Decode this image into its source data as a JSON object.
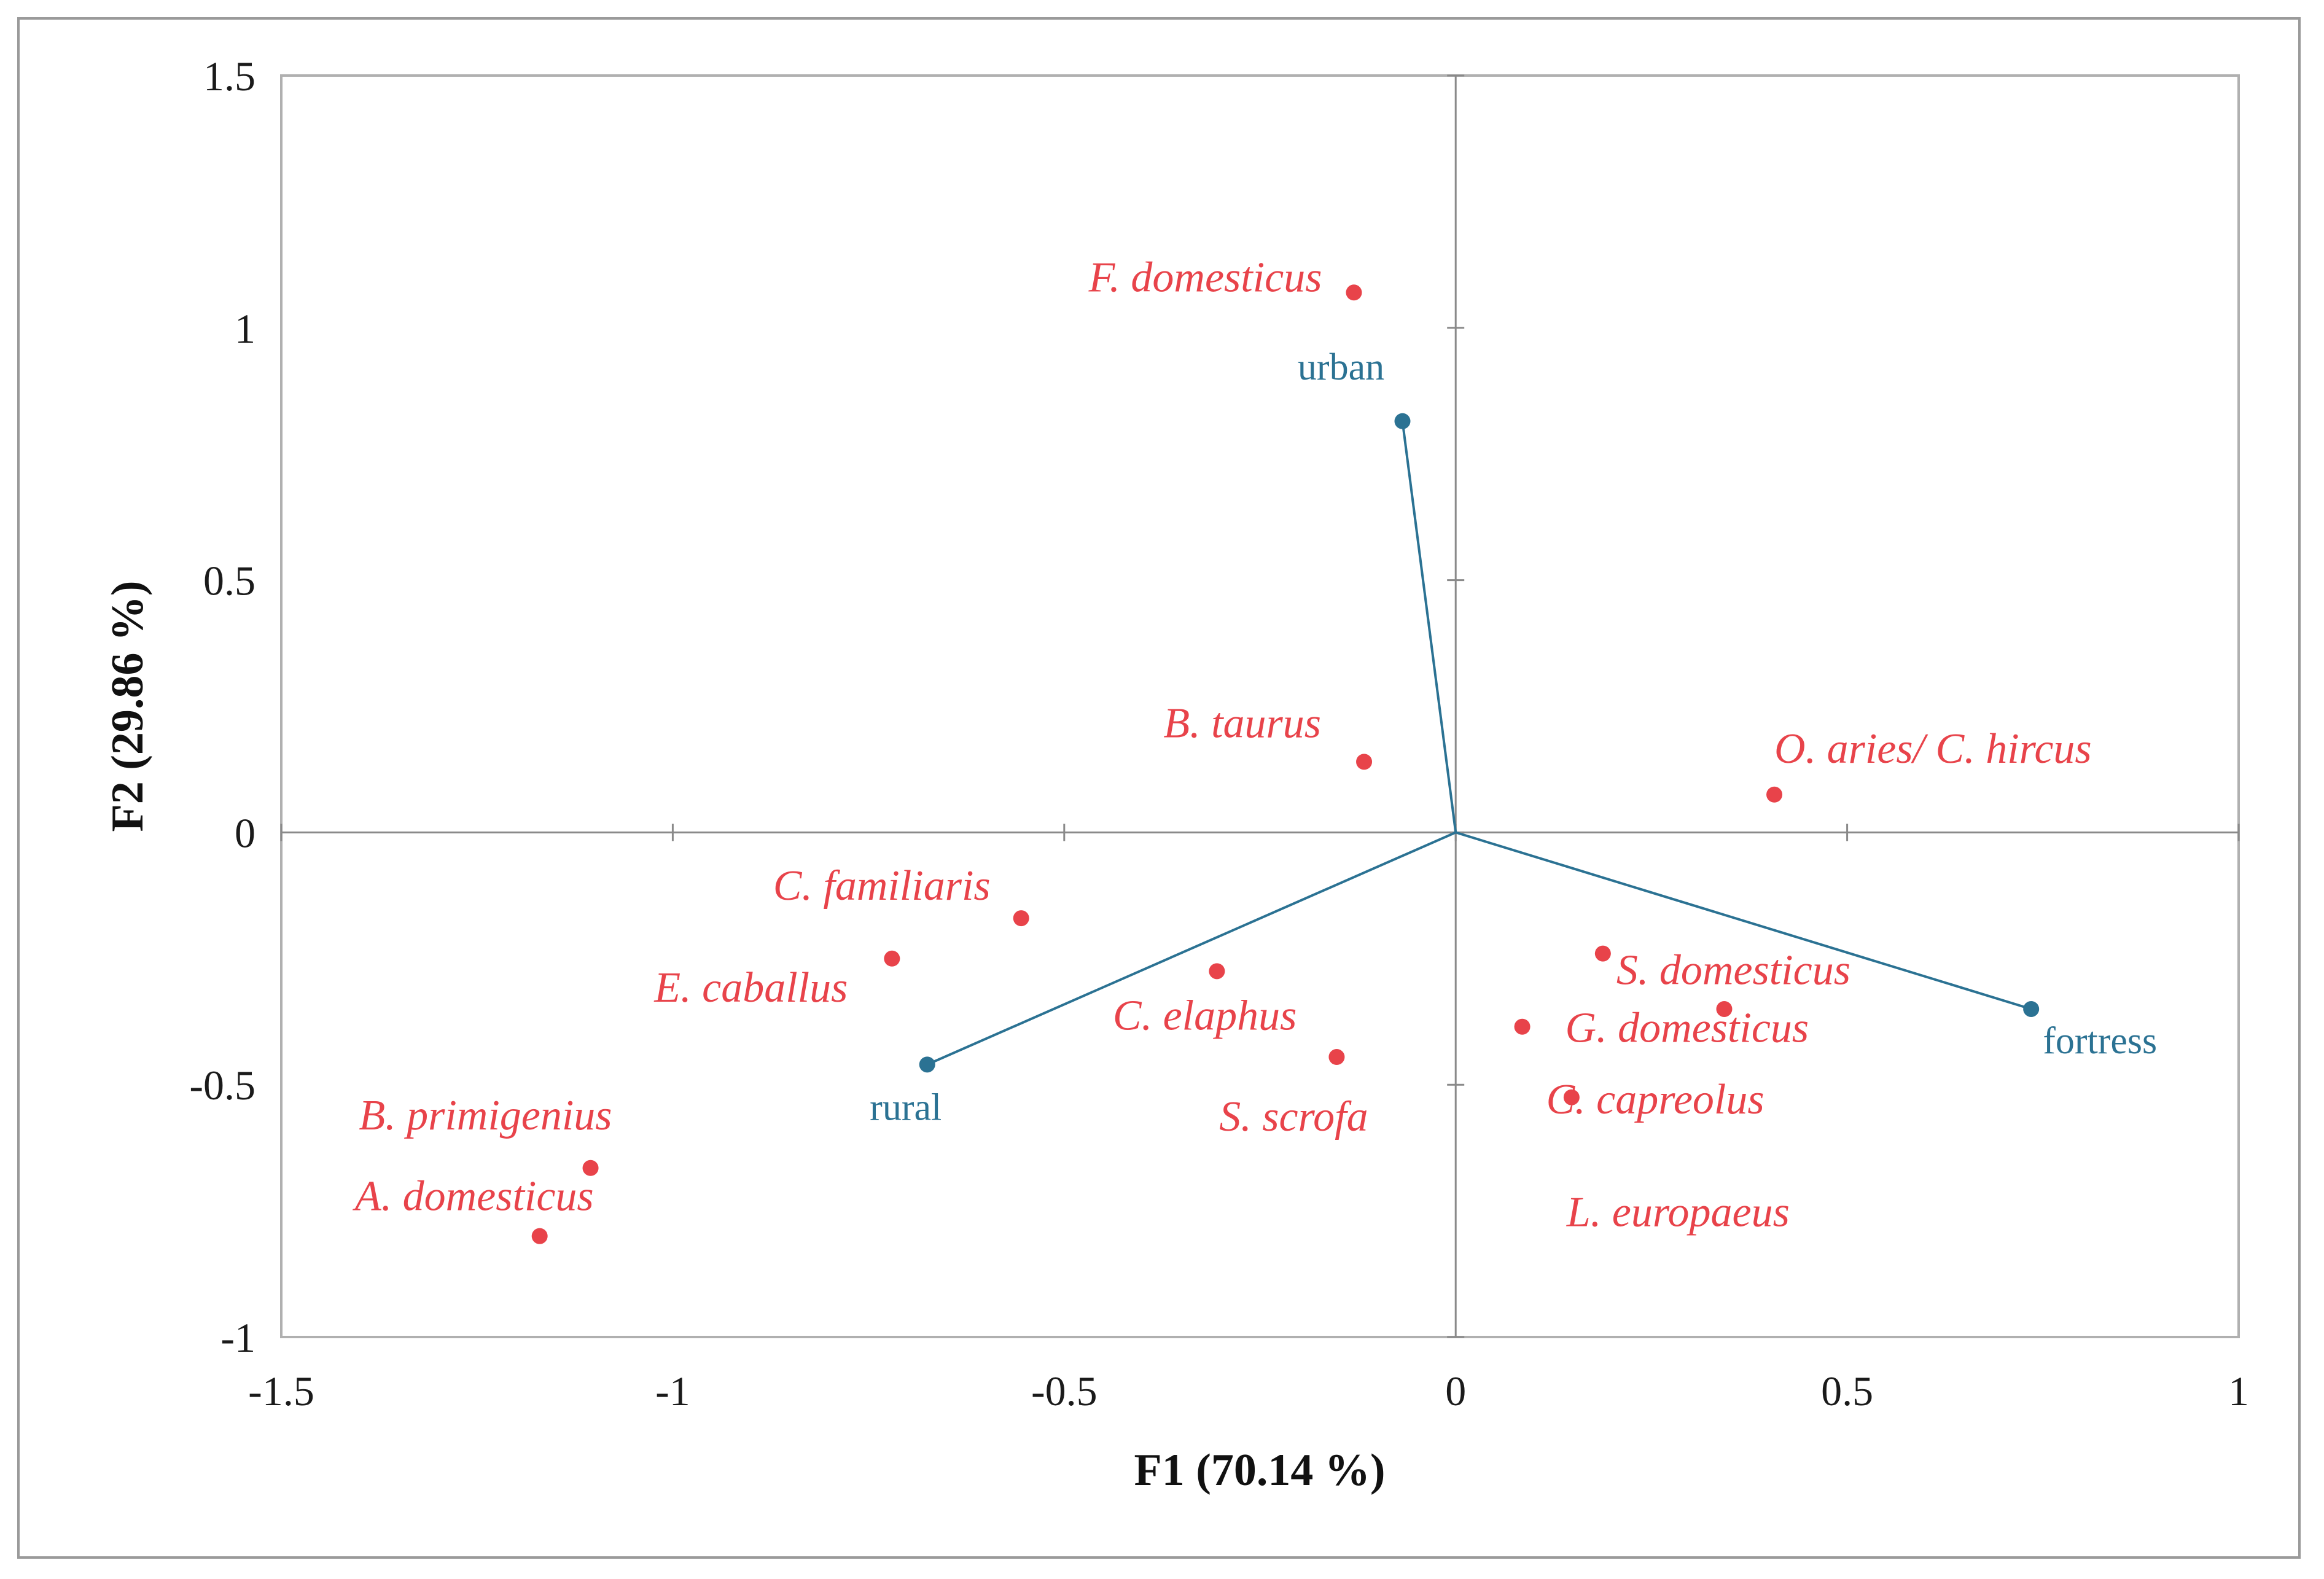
{
  "chart_data": {
    "type": "scatter",
    "subtype": "correspondence-analysis-biplot",
    "xlabel": "F1 (70.14 %)",
    "ylabel": "F2 (29.86 %)",
    "xlim": [
      -1.5,
      1
    ],
    "ylim": [
      -1,
      1.5
    ],
    "xticks": [
      -1.5,
      -1,
      -0.5,
      0,
      0.5,
      1
    ],
    "yticks": [
      -1,
      -0.5,
      0,
      0.5,
      1,
      1.5
    ],
    "xtick_labels": [
      "-1.5",
      "-1",
      "-0.5",
      "0",
      "0.5",
      "1"
    ],
    "ytick_labels": [
      "-1",
      "-0.5",
      "0",
      "0.5",
      "1",
      "1.5"
    ],
    "grid": false,
    "colors": {
      "species": "#e8434a",
      "sites": "#2b7293",
      "axes": "#8a8a8a"
    },
    "series": [
      {
        "name": "species",
        "points": [
          {
            "label": "F. domesticus",
            "x": -0.13,
            "y": 1.07
          },
          {
            "label": "B. taurus",
            "x": -0.117,
            "y": 0.14
          },
          {
            "label": "O. aries/ C. hircus",
            "x": 0.407,
            "y": 0.075
          },
          {
            "label": "C. familiaris",
            "x": -0.555,
            "y": -0.17
          },
          {
            "label": "E. caballus",
            "x": -0.72,
            "y": -0.25
          },
          {
            "label": "C. elaphus",
            "x": -0.305,
            "y": -0.275
          },
          {
            "label": "S. scrofa",
            "x": -0.152,
            "y": -0.445
          },
          {
            "label": "S. domesticus",
            "x": 0.188,
            "y": -0.24
          },
          {
            "label": "G. domesticus",
            "x": 0.085,
            "y": -0.385
          },
          {
            "label": "C. capreolus",
            "x": 0.343,
            "y": -0.35
          },
          {
            "label": "L. europaeus",
            "x": 0.148,
            "y": -0.525
          },
          {
            "label": "B. primigenius",
            "x": -1.105,
            "y": -0.665
          },
          {
            "label": "A. domesticus",
            "x": -1.17,
            "y": -0.8
          }
        ]
      },
      {
        "name": "sites",
        "vectors": [
          {
            "label": "urban",
            "x": -0.068,
            "y": 0.815
          },
          {
            "label": "rural",
            "x": -0.675,
            "y": -0.46
          },
          {
            "label": "fortress",
            "x": 0.735,
            "y": -0.35
          }
        ]
      }
    ]
  }
}
